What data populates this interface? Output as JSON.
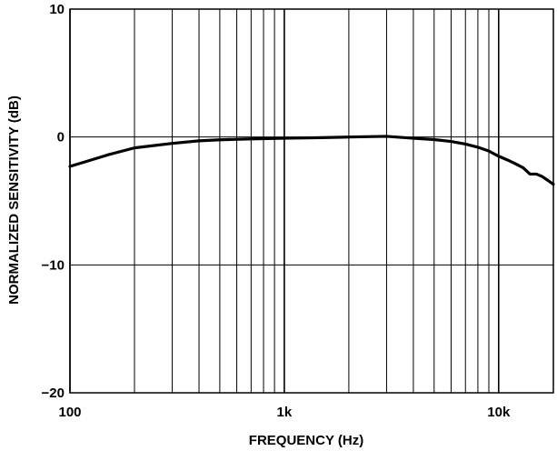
{
  "chart_data": {
    "type": "line",
    "title": "",
    "xlabel": "FREQUENCY (Hz)",
    "ylabel": "NORMALIZED SENSITIVITY (dB)",
    "x_scale": "log",
    "xlim": [
      100,
      18000
    ],
    "ylim": [
      -20,
      10
    ],
    "grid": true,
    "x_ticks": [
      {
        "value": 100,
        "label": "100"
      },
      {
        "value": 1000,
        "label": "1k"
      },
      {
        "value": 10000,
        "label": "10k"
      }
    ],
    "y_ticks": [
      {
        "value": 10,
        "label": "10"
      },
      {
        "value": 0,
        "label": "0"
      },
      {
        "value": -10,
        "label": "−10"
      },
      {
        "value": -20,
        "label": "−20"
      }
    ],
    "series": [
      {
        "points": [
          [
            100,
            -2.3
          ],
          [
            120,
            -1.9
          ],
          [
            150,
            -1.4
          ],
          [
            200,
            -0.85
          ],
          [
            300,
            -0.5
          ],
          [
            400,
            -0.3
          ],
          [
            500,
            -0.22
          ],
          [
            700,
            -0.15
          ],
          [
            1000,
            -0.1
          ],
          [
            1500,
            -0.05
          ],
          [
            2000,
            0.0
          ],
          [
            3000,
            0.05
          ],
          [
            4000,
            -0.1
          ],
          [
            5000,
            -0.2
          ],
          [
            6000,
            -0.35
          ],
          [
            7000,
            -0.55
          ],
          [
            8000,
            -0.8
          ],
          [
            9000,
            -1.1
          ],
          [
            10000,
            -1.5
          ],
          [
            11000,
            -1.8
          ],
          [
            12000,
            -2.1
          ],
          [
            13000,
            -2.4
          ],
          [
            14000,
            -2.9
          ],
          [
            15000,
            -2.9
          ],
          [
            16000,
            -3.1
          ],
          [
            17000,
            -3.4
          ],
          [
            18000,
            -3.7
          ]
        ]
      }
    ]
  }
}
